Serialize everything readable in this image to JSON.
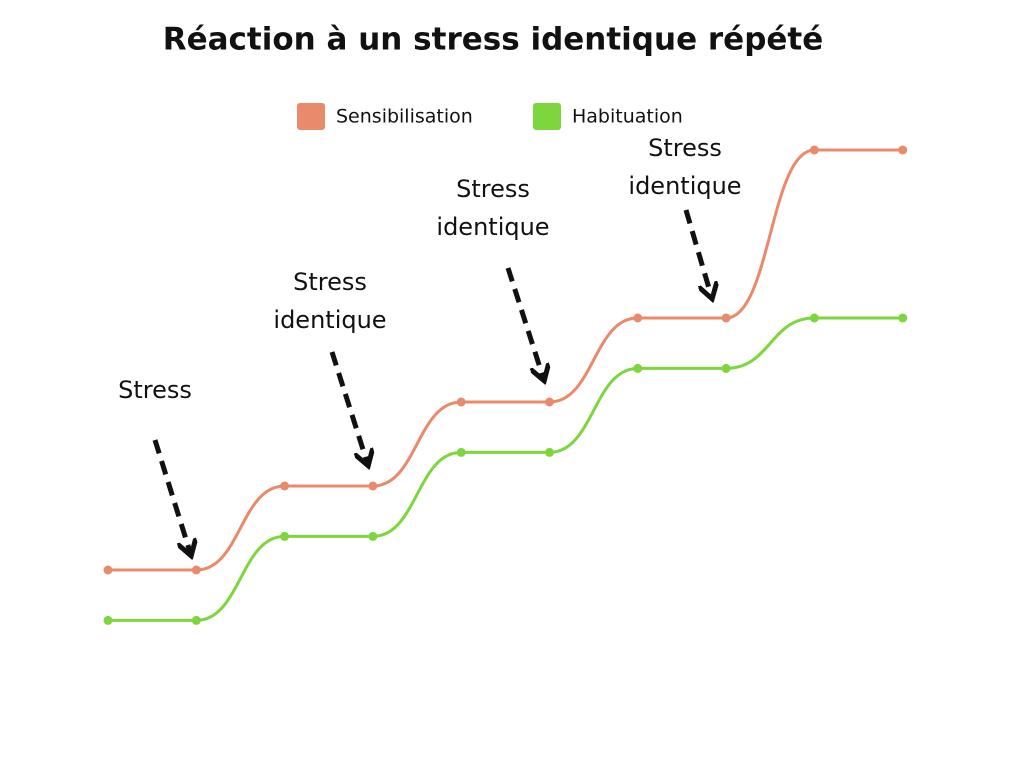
{
  "chart_data": {
    "type": "line",
    "title": "Réaction à un stress identique répété",
    "categories": [
      null,
      null,
      null,
      null,
      null,
      null,
      null,
      null,
      null,
      null
    ],
    "series": [
      {
        "name": "Sensibilisation",
        "color": "#e98b6b",
        "values": [
          1,
          1,
          2,
          2,
          3,
          3,
          4,
          4,
          6,
          6
        ]
      },
      {
        "name": "Habituation",
        "color": "#7ed63f",
        "values": [
          0.4,
          0.4,
          1.4,
          1.4,
          2.4,
          2.4,
          3.4,
          3.4,
          4,
          4
        ]
      }
    ],
    "annotations": [
      [
        "Stress"
      ],
      [
        "Stress",
        "identique"
      ],
      [
        "Stress",
        "identique"
      ],
      [
        "Stress",
        "identique"
      ]
    ],
    "legend": "top"
  }
}
